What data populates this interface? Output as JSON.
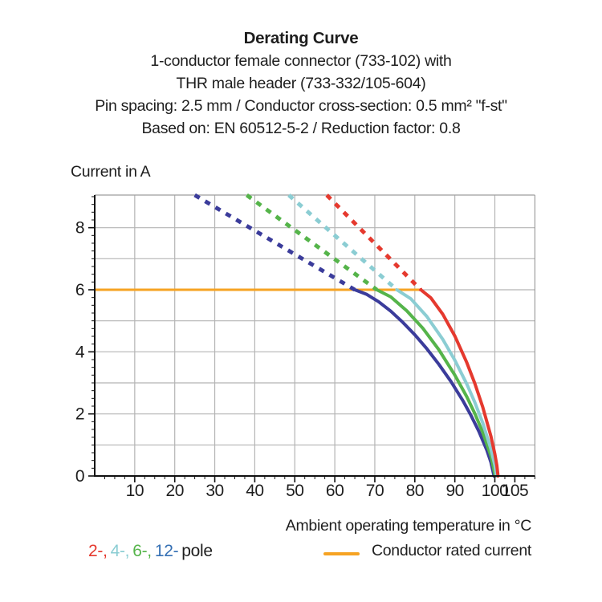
{
  "title_block": {
    "title": "Derating Curve",
    "subtitle_lines": [
      "1-conductor female connector (733-102) with",
      "THR male header (733-332/105-604)",
      "Pin spacing: 2.5 mm / Conductor cross-section: 0.5 mm² \"f-st\"",
      "Based on: EN 60512-5-2 / Reduction factor: 0.8"
    ]
  },
  "chart_data": {
    "type": "line",
    "title": "Derating Curve",
    "ylabel": "Current in A",
    "xlabel": "Ambient operating temperature in °C",
    "xlim": [
      0,
      110
    ],
    "ylim": [
      0,
      9.05
    ],
    "x_major_ticks": [
      10,
      20,
      30,
      40,
      50,
      60,
      70,
      80,
      90,
      100,
      105
    ],
    "x_minor_step": 2.5,
    "y_major_ticks": [
      0,
      2,
      4,
      6,
      8
    ],
    "y_minor_step": 0.25,
    "grid_x": [
      10,
      20,
      30,
      40,
      50,
      60,
      70,
      80,
      90,
      100
    ],
    "grid_y": [
      1,
      2,
      3,
      4,
      5,
      6,
      7,
      8
    ],
    "colors": {
      "grid": "#b4b4b4",
      "border": "#9e9e9e",
      "axis": "#111111",
      "text": "#1e1e1e"
    },
    "rated_current": {
      "label": "Conductor rated current",
      "value": 6,
      "x_start": 0,
      "x_end": 81.5,
      "color": "#F6A323"
    },
    "series": [
      {
        "name": "12-pole",
        "color": "#3B3C9B",
        "dashed_segment": [
          [
            25,
            9.05
          ],
          [
            65,
            6
          ]
        ],
        "solid_points": [
          [
            65,
            6
          ],
          [
            68,
            5.85
          ],
          [
            71,
            5.61
          ],
          [
            74,
            5.31
          ],
          [
            77,
            4.95
          ],
          [
            80,
            4.55
          ],
          [
            83,
            4.1
          ],
          [
            86,
            3.6
          ],
          [
            89,
            3.05
          ],
          [
            92,
            2.43
          ],
          [
            94,
            1.96
          ],
          [
            96,
            1.44
          ],
          [
            98,
            0.83
          ],
          [
            99,
            0.45
          ],
          [
            99.8,
            0
          ]
        ]
      },
      {
        "name": "6-pole",
        "color": "#55B44A",
        "dashed_segment": [
          [
            38,
            9.05
          ],
          [
            70.5,
            6
          ]
        ],
        "solid_points": [
          [
            70.5,
            6
          ],
          [
            74,
            5.77
          ],
          [
            78,
            5.32
          ],
          [
            82,
            4.76
          ],
          [
            86,
            4.07
          ],
          [
            90,
            3.25
          ],
          [
            93,
            2.55
          ],
          [
            95,
            2.01
          ],
          [
            97,
            1.4
          ],
          [
            99,
            0.65
          ],
          [
            100.1,
            0
          ]
        ]
      },
      {
        "name": "4-pole",
        "color": "#8BCDD3",
        "dashed_segment": [
          [
            48.5,
            9.05
          ],
          [
            75.5,
            6
          ]
        ],
        "solid_points": [
          [
            75.5,
            6
          ],
          [
            79,
            5.71
          ],
          [
            83,
            5.14
          ],
          [
            87,
            4.4
          ],
          [
            90,
            3.73
          ],
          [
            93,
            2.96
          ],
          [
            95,
            2.37
          ],
          [
            97,
            1.7
          ],
          [
            99,
            0.88
          ],
          [
            100,
            0.35
          ],
          [
            100.4,
            0
          ]
        ]
      },
      {
        "name": "2-pole",
        "color": "#E5392E",
        "dashed_segment": [
          [
            58,
            9.05
          ],
          [
            81.5,
            6
          ]
        ],
        "solid_points": [
          [
            81.5,
            6
          ],
          [
            84,
            5.74
          ],
          [
            87,
            5.21
          ],
          [
            90,
            4.51
          ],
          [
            93,
            3.65
          ],
          [
            95,
            2.98
          ],
          [
            97,
            2.21
          ],
          [
            99,
            1.29
          ],
          [
            100,
            0.71
          ],
          [
            100.5,
            0.34
          ],
          [
            100.8,
            0
          ]
        ]
      }
    ]
  },
  "legend": {
    "pole_items": [
      {
        "label": "2-,",
        "color": "#E5392E"
      },
      {
        "label": "4-,",
        "color": "#8BCDD3"
      },
      {
        "label": "6-,",
        "color": "#55B44A"
      },
      {
        "label": "12-",
        "color": "#3570B4"
      },
      {
        "label": "pole",
        "color": "#1e1e1e"
      }
    ],
    "rated_label": "Conductor rated current"
  }
}
